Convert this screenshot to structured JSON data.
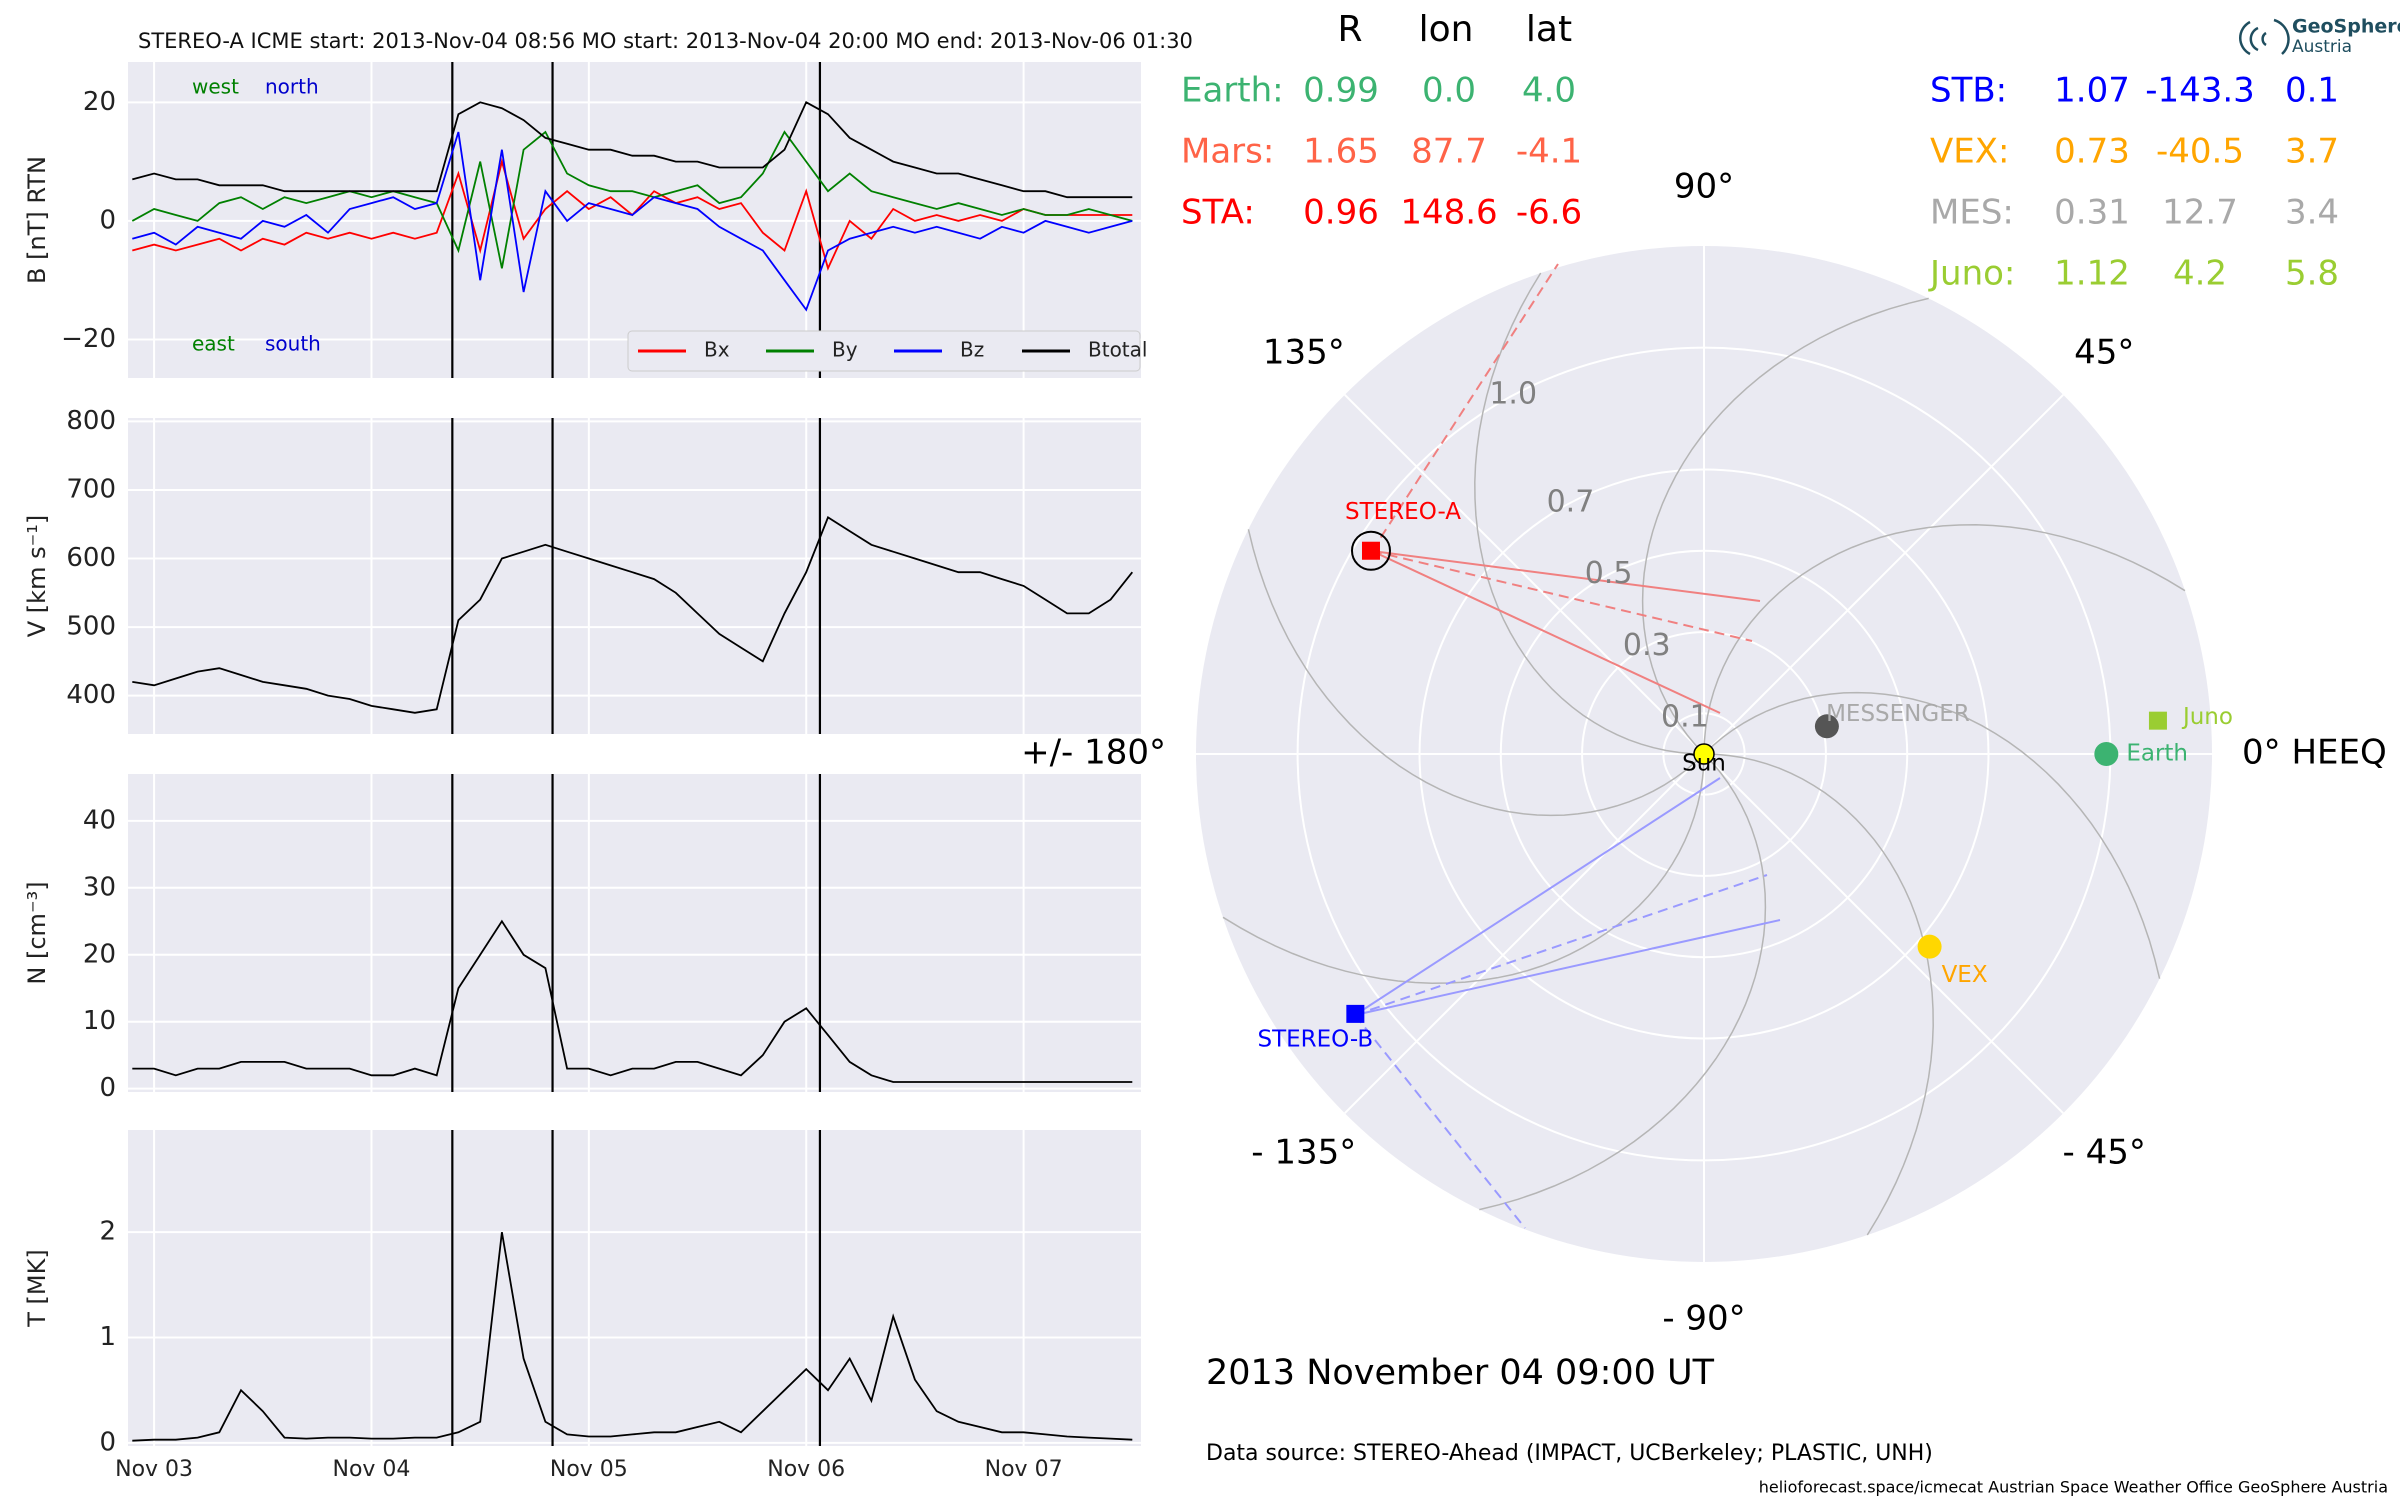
{
  "chart_data": [
    {
      "type": "line",
      "title": "STEREO-A    ICME start: 2013-Nov-04 08:56    MO start: 2013-Nov-04 20:00    MO end: 2013-Nov-06 01:30",
      "ylabel": "B [nT] RTN",
      "x": [
        2.9,
        3.0,
        3.1,
        3.2,
        3.3,
        3.4,
        3.5,
        3.6,
        3.7,
        3.8,
        3.9,
        4.0,
        4.1,
        4.2,
        4.3,
        4.4,
        4.5,
        4.6,
        4.7,
        4.8,
        4.9,
        5.0,
        5.1,
        5.2,
        5.3,
        5.4,
        5.5,
        5.6,
        5.7,
        5.8,
        5.9,
        6.0,
        6.1,
        6.2,
        6.3,
        6.4,
        6.5,
        6.6,
        6.7,
        6.8,
        6.9,
        7.0,
        7.1,
        7.2,
        7.3,
        7.4,
        7.5
      ],
      "xlim": [
        2.88,
        7.54
      ],
      "xticks": [
        3,
        4,
        5,
        6,
        7
      ],
      "show_xtick_labels": false,
      "ylim": [
        -26.5,
        26.8
      ],
      "yticks": [
        {
          "value": -20,
          "label": "−20"
        },
        0,
        20
      ],
      "grid": true,
      "vlines": [
        4.372,
        4.833,
        6.063
      ],
      "legend": "lower right",
      "annotations": [
        {
          "text": "west",
          "color": "#008000"
        },
        {
          "text": "north",
          "color": "#0000cc"
        },
        {
          "text": "east",
          "color": "#008000"
        },
        {
          "text": "south",
          "color": "#0000cc"
        }
      ],
      "series": [
        {
          "name": "Bx",
          "color": "#ff0000",
          "values": [
            -5,
            -4,
            -5,
            -4,
            -3,
            -5,
            -3,
            -4,
            -2,
            -3,
            -2,
            -3,
            -2,
            -3,
            -2,
            8,
            -5,
            10,
            -3,
            2,
            5,
            2,
            4,
            1,
            5,
            3,
            4,
            2,
            3,
            -2,
            -5,
            5,
            -8,
            0,
            -3,
            2,
            0,
            1,
            0,
            1,
            0,
            2,
            1,
            1,
            1,
            1,
            1
          ]
        },
        {
          "name": "By",
          "color": "#008000",
          "values": [
            0,
            2,
            1,
            0,
            3,
            4,
            2,
            4,
            3,
            4,
            5,
            4,
            5,
            4,
            3,
            -5,
            10,
            -8,
            12,
            15,
            8,
            6,
            5,
            5,
            4,
            5,
            6,
            3,
            4,
            8,
            15,
            10,
            5,
            8,
            5,
            4,
            3,
            2,
            3,
            2,
            1,
            2,
            1,
            1,
            2,
            1,
            0
          ]
        },
        {
          "name": "Bz",
          "color": "#0000ff",
          "values": [
            -3,
            -2,
            -4,
            -1,
            -2,
            -3,
            0,
            -1,
            1,
            -2,
            2,
            3,
            4,
            2,
            3,
            15,
            -10,
            12,
            -12,
            5,
            0,
            3,
            2,
            1,
            4,
            3,
            2,
            -1,
            -3,
            -5,
            -10,
            -15,
            -5,
            -3,
            -2,
            -1,
            -2,
            -1,
            -2,
            -3,
            -1,
            -2,
            0,
            -1,
            -2,
            -1,
            0
          ]
        },
        {
          "name": "Btotal",
          "color": "#000000",
          "values": [
            7,
            8,
            7,
            7,
            6,
            6,
            6,
            5,
            5,
            5,
            5,
            5,
            5,
            5,
            5,
            18,
            20,
            19,
            17,
            14,
            13,
            12,
            12,
            11,
            11,
            10,
            10,
            9,
            9,
            9,
            12,
            20,
            18,
            14,
            12,
            10,
            9,
            8,
            8,
            7,
            6,
            5,
            5,
            4,
            4,
            4,
            4
          ]
        }
      ]
    },
    {
      "type": "line",
      "ylabel": "V [km s⁻¹]",
      "x": [
        2.9,
        3.0,
        3.1,
        3.2,
        3.3,
        3.4,
        3.5,
        3.6,
        3.7,
        3.8,
        3.9,
        4.0,
        4.1,
        4.2,
        4.3,
        4.4,
        4.5,
        4.6,
        4.7,
        4.8,
        4.9,
        5.0,
        5.1,
        5.2,
        5.3,
        5.4,
        5.5,
        5.6,
        5.7,
        5.8,
        5.9,
        6.0,
        6.1,
        6.2,
        6.3,
        6.4,
        6.5,
        6.6,
        6.7,
        6.8,
        6.9,
        7.0,
        7.1,
        7.2,
        7.3,
        7.4,
        7.5
      ],
      "xlim": [
        2.88,
        7.54
      ],
      "xticks": [
        3,
        4,
        5,
        6,
        7
      ],
      "show_xtick_labels": false,
      "ylim": [
        344,
        805
      ],
      "yticks": [
        400,
        500,
        600,
        700,
        800
      ],
      "grid": true,
      "vlines": [
        4.372,
        4.833,
        6.063
      ],
      "series": [
        {
          "color": "#000000",
          "values": [
            420,
            415,
            425,
            435,
            440,
            430,
            420,
            415,
            410,
            400,
            395,
            385,
            380,
            375,
            380,
            510,
            540,
            600,
            610,
            620,
            610,
            600,
            590,
            580,
            570,
            550,
            520,
            490,
            470,
            450,
            520,
            580,
            660,
            640,
            620,
            610,
            600,
            590,
            580,
            580,
            570,
            560,
            540,
            520,
            520,
            540,
            580
          ]
        }
      ]
    },
    {
      "type": "line",
      "ylabel": "N [cm⁻³]",
      "x": [
        2.9,
        3.0,
        3.1,
        3.2,
        3.3,
        3.4,
        3.5,
        3.6,
        3.7,
        3.8,
        3.9,
        4.0,
        4.1,
        4.2,
        4.3,
        4.4,
        4.5,
        4.6,
        4.7,
        4.8,
        4.9,
        5.0,
        5.1,
        5.2,
        5.3,
        5.4,
        5.5,
        5.6,
        5.7,
        5.8,
        5.9,
        6.0,
        6.1,
        6.2,
        6.3,
        6.4,
        6.5,
        6.6,
        6.7,
        6.8,
        6.9,
        7.0,
        7.1,
        7.2,
        7.3,
        7.4,
        7.5
      ],
      "xlim": [
        2.88,
        7.54
      ],
      "xticks": [
        3,
        4,
        5,
        6,
        7
      ],
      "show_xtick_labels": false,
      "ylim": [
        -0.5,
        47
      ],
      "yticks": [
        0,
        10,
        20,
        30,
        40
      ],
      "grid": true,
      "vlines": [
        4.372,
        4.833,
        6.063
      ],
      "series": [
        {
          "color": "#000000",
          "values": [
            3,
            3,
            2,
            3,
            3,
            4,
            4,
            4,
            3,
            3,
            3,
            2,
            2,
            3,
            2,
            15,
            20,
            25,
            20,
            18,
            3,
            3,
            2,
            3,
            3,
            4,
            4,
            3,
            2,
            5,
            10,
            12,
            8,
            4,
            2,
            1,
            1,
            1,
            1,
            1,
            1,
            1,
            1,
            1,
            1,
            1,
            1
          ]
        }
      ]
    },
    {
      "type": "line",
      "ylabel": "T [MK]",
      "x": [
        2.9,
        3.0,
        3.1,
        3.2,
        3.3,
        3.4,
        3.5,
        3.6,
        3.7,
        3.8,
        3.9,
        4.0,
        4.1,
        4.2,
        4.3,
        4.4,
        4.5,
        4.6,
        4.7,
        4.8,
        4.9,
        5.0,
        5.1,
        5.2,
        5.3,
        5.4,
        5.5,
        5.6,
        5.7,
        5.8,
        5.9,
        6.0,
        6.1,
        6.2,
        6.3,
        6.4,
        6.5,
        6.6,
        6.7,
        6.8,
        6.9,
        7.0,
        7.1,
        7.2,
        7.3,
        7.4,
        7.5
      ],
      "xlim": [
        2.88,
        7.54
      ],
      "xticks": [
        {
          "value": 3,
          "label": "Nov 03"
        },
        {
          "value": 4,
          "label": "Nov 04"
        },
        {
          "value": 5,
          "label": "Nov 05"
        },
        {
          "value": 6,
          "label": "Nov 06"
        },
        {
          "value": 7,
          "label": "Nov 07"
        }
      ],
      "show_xtick_labels": true,
      "ylim": [
        -0.03,
        2.97
      ],
      "yticks": [
        0,
        1,
        2
      ],
      "grid": true,
      "vlines": [
        4.372,
        4.833,
        6.063
      ],
      "series": [
        {
          "color": "#000000",
          "values": [
            0.02,
            0.03,
            0.03,
            0.05,
            0.1,
            0.5,
            0.3,
            0.05,
            0.04,
            0.05,
            0.05,
            0.04,
            0.04,
            0.05,
            0.05,
            0.1,
            0.2,
            2.0,
            0.8,
            0.2,
            0.08,
            0.06,
            0.06,
            0.08,
            0.1,
            0.1,
            0.15,
            0.2,
            0.1,
            0.3,
            0.5,
            0.7,
            0.5,
            0.8,
            0.4,
            1.2,
            0.6,
            0.3,
            0.2,
            0.15,
            0.1,
            0.1,
            0.08,
            0.06,
            0.05,
            0.04,
            0.03
          ]
        }
      ]
    },
    {
      "type": "polar",
      "rlim": [
        0,
        1.25
      ],
      "rticks": [
        0.1,
        0.3,
        0.5,
        0.7,
        {
          "value": 1,
          "label": "1.0"
        }
      ],
      "thetaticks": [
        {
          "value": 0,
          "label": "0° HEEQ"
        },
        {
          "value": 45,
          "label": "45°"
        },
        {
          "value": 90,
          "label": "90°"
        },
        {
          "value": 135,
          "label": "135°"
        },
        {
          "value": 180,
          "label": "+/- 180°"
        },
        {
          "value": -135,
          "label": "- 135°"
        },
        {
          "value": -90,
          "label": "- 90°"
        },
        {
          "value": -45,
          "label": "- 45°"
        }
      ],
      "points": [
        {
          "name": "Sun",
          "color": "#ffff00",
          "label_color": "#000000",
          "marker": "circle",
          "r": 0,
          "theta": 0
        },
        {
          "name": "Earth",
          "color": "#3cb371",
          "label_color": "#3cb371",
          "marker": "circle",
          "r": 0.99,
          "theta": 0.0
        },
        {
          "name": "STEREO-A",
          "color": "#ff0000",
          "label_color": "#ff0000",
          "marker": "square",
          "r": 0.96,
          "theta": 148.6
        },
        {
          "name": "STEREO-B",
          "color": "#0000ff",
          "label_color": "#0000ff",
          "marker": "square",
          "r": 1.07,
          "theta": -143.3
        },
        {
          "name": "VEX",
          "color": "#ffd700",
          "label_color": "#ffa500",
          "marker": "circle",
          "r": 0.73,
          "theta": -40.5
        },
        {
          "name": "MESSENGER",
          "color": "#555555",
          "label_color": "#a9a9a9",
          "marker": "circle",
          "r": 0.31,
          "theta": 12.7
        },
        {
          "name": "Juno",
          "color": "#9acd32",
          "label_color": "#9acd32",
          "marker": "square",
          "r": 1.12,
          "theta": 4.2
        }
      ]
    }
  ],
  "positions": {
    "header": [
      "R",
      "lon",
      "lat"
    ],
    "left": [
      {
        "name": "Earth:",
        "color": "#3cb371",
        "values": [
          "0.99",
          "0.0",
          "4.0"
        ]
      },
      {
        "name": "Mars:",
        "color": "#ff6347",
        "values": [
          "1.65",
          "87.7",
          "-4.1"
        ]
      },
      {
        "name": "STA:",
        "color": "#ff0000",
        "values": [
          "0.96",
          "148.6",
          "-6.6"
        ]
      }
    ],
    "right": [
      {
        "name": "STB:",
        "color": "#0000ff",
        "values": [
          "1.07",
          "-143.3",
          "0.1"
        ]
      },
      {
        "name": "VEX:",
        "color": "#ffa500",
        "values": [
          "0.73",
          "-40.5",
          "3.7"
        ]
      },
      {
        "name": "MES:",
        "color": "#a9a9a9",
        "values": [
          "0.31",
          "12.7",
          "3.4"
        ]
      },
      {
        "name": "Juno:",
        "color": "#9acd32",
        "values": [
          "1.12",
          "4.2",
          "5.8"
        ]
      }
    ]
  },
  "date": "2013 November 04  09:00 UT",
  "data_source": "Data source: STEREO-Ahead (IMPACT, UCBerkeley; PLASTIC, UNH)",
  "footer": "helioforecast.space/icmecat   Austrian Space Weather Office   GeoSphere Austria",
  "logo": {
    "name": "GeoSphere",
    "sub": "Austria"
  }
}
